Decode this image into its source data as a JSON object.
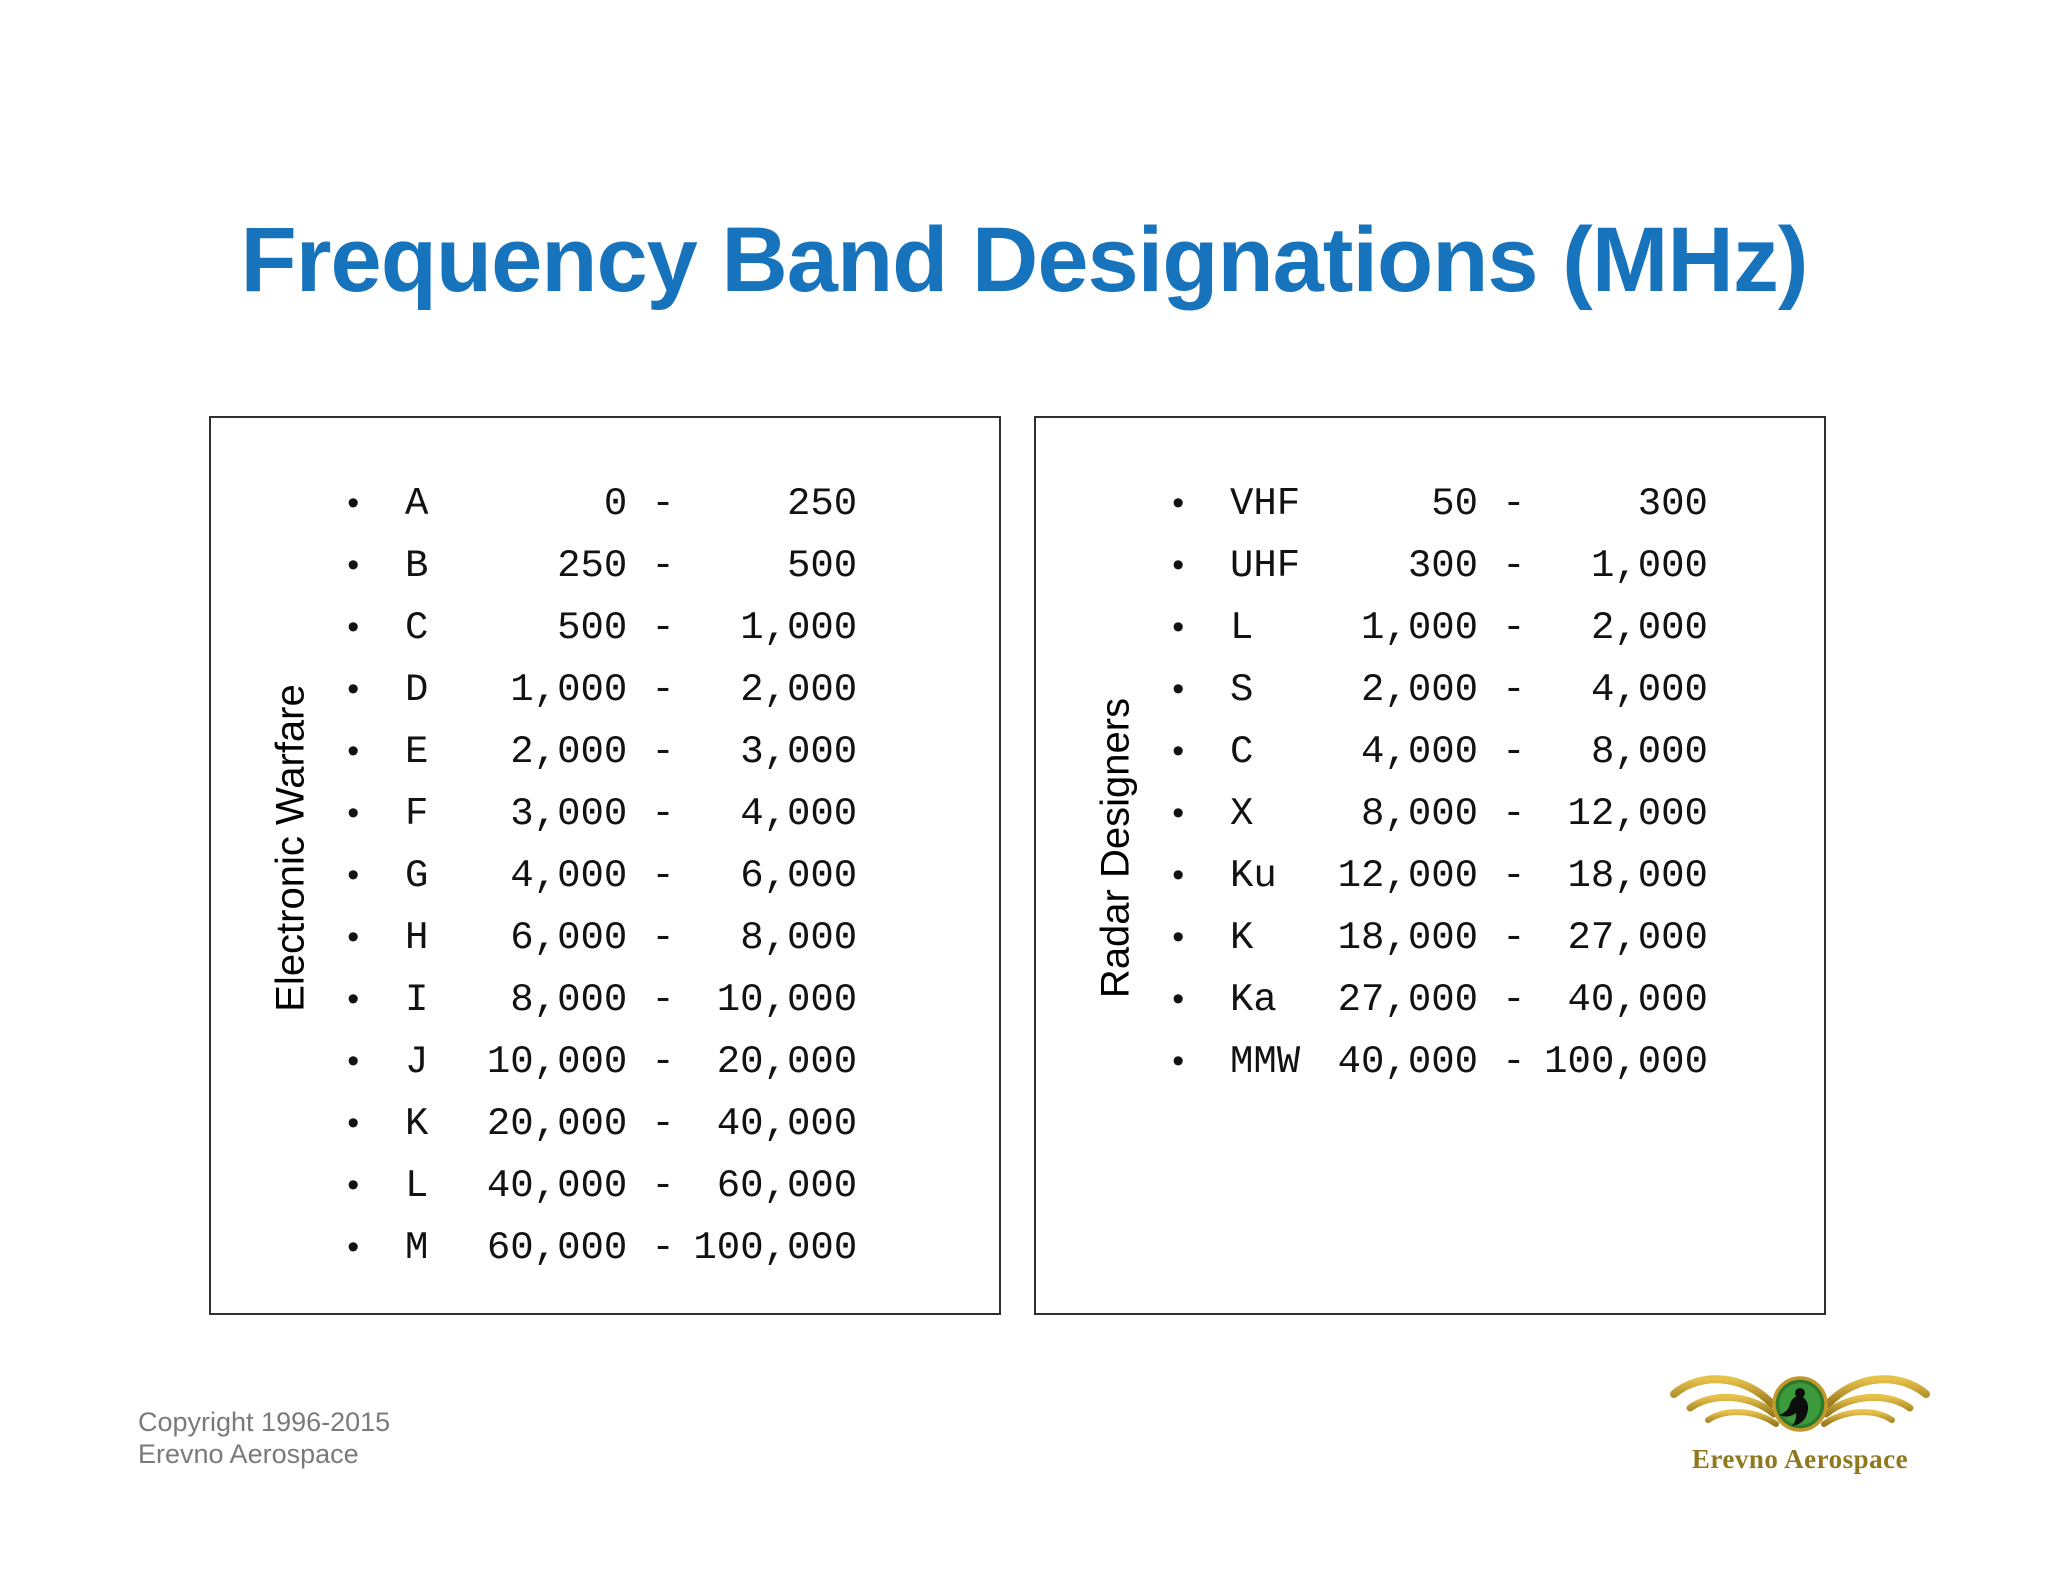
{
  "title": "Frequency Band Designations (MHz)",
  "colors": {
    "title": "#1873bd",
    "panel_border": "#2f2f2f",
    "copyright_text": "#7a7a7a",
    "logo_gold": "#c3992b",
    "logo_text_gold": "#8f781e",
    "logo_green": "#2d7a2d"
  },
  "list_style": {
    "bullet_glyph": "•",
    "range_separator": "-"
  },
  "left_panel": {
    "label": "Electronic Warfare",
    "rows": [
      {
        "band": "A",
        "low": "0",
        "high": "250"
      },
      {
        "band": "B",
        "low": "250",
        "high": "500"
      },
      {
        "band": "C",
        "low": "500",
        "high": "1,000"
      },
      {
        "band": "D",
        "low": "1,000",
        "high": "2,000"
      },
      {
        "band": "E",
        "low": "2,000",
        "high": "3,000"
      },
      {
        "band": "F",
        "low": "3,000",
        "high": "4,000"
      },
      {
        "band": "G",
        "low": "4,000",
        "high": "6,000"
      },
      {
        "band": "H",
        "low": "6,000",
        "high": "8,000"
      },
      {
        "band": "I",
        "low": "8,000",
        "high": "10,000"
      },
      {
        "band": "J",
        "low": "10,000",
        "high": "20,000"
      },
      {
        "band": "K",
        "low": "20,000",
        "high": "40,000"
      },
      {
        "band": "L",
        "low": "40,000",
        "high": "60,000"
      },
      {
        "band": "M",
        "low": "60,000",
        "high": "100,000"
      }
    ]
  },
  "right_panel": {
    "label": "Radar Designers",
    "rows": [
      {
        "band": "VHF",
        "low": "50",
        "high": "300"
      },
      {
        "band": "UHF",
        "low": "300",
        "high": "1,000"
      },
      {
        "band": "L",
        "low": "1,000",
        "high": "2,000"
      },
      {
        "band": "S",
        "low": "2,000",
        "high": "4,000"
      },
      {
        "band": "C",
        "low": "4,000",
        "high": "8,000"
      },
      {
        "band": "X",
        "low": "8,000",
        "high": "12,000"
      },
      {
        "band": "Ku",
        "low": "12,000",
        "high": "18,000"
      },
      {
        "band": "K",
        "low": "18,000",
        "high": "27,000"
      },
      {
        "band": "Ka",
        "low": "27,000",
        "high": "40,000"
      },
      {
        "band": "MMW",
        "low": "40,000",
        "high": "100,000"
      }
    ]
  },
  "footer": {
    "copyright_line1": "Copyright 1996-2015",
    "copyright_line2": "Erevno Aerospace"
  },
  "logo": {
    "text": "Erevno Aerospace"
  }
}
